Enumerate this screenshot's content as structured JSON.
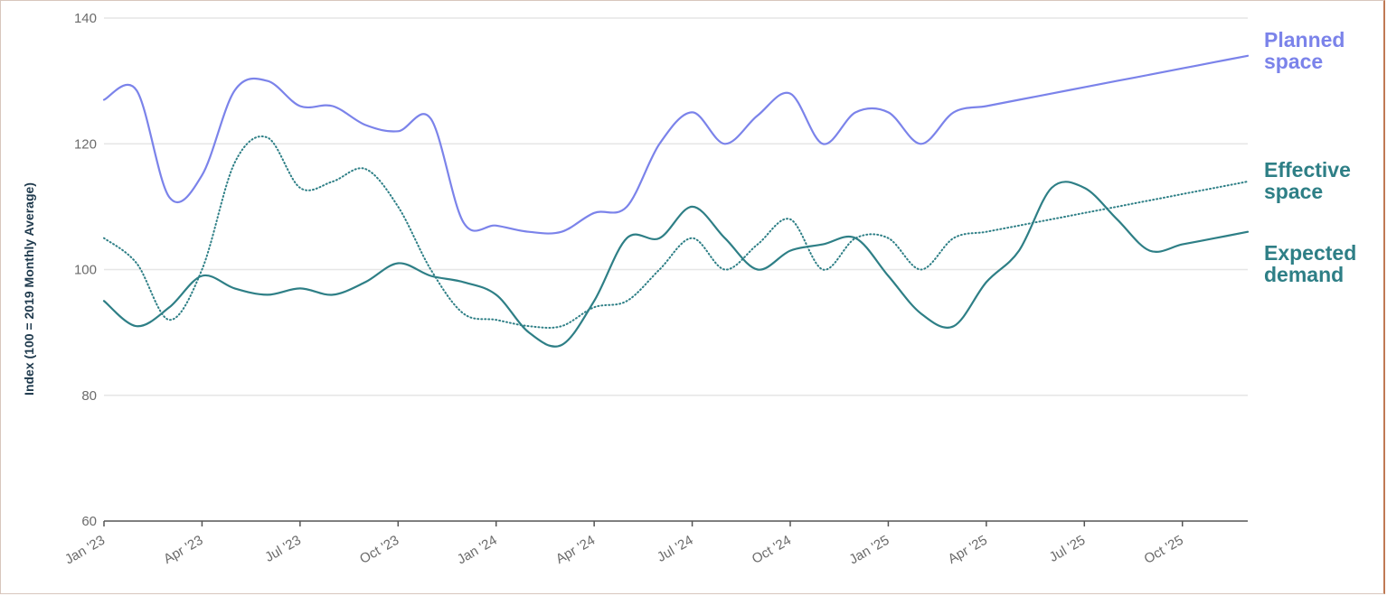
{
  "chart_data": {
    "type": "line",
    "ylabel": "Index (100 = 2019 Monthly Average)",
    "xlabel": "",
    "ylim": [
      60,
      140
    ],
    "yticks": [
      60,
      80,
      100,
      120,
      140
    ],
    "grid": true,
    "x_tick_labels": [
      "Jan '23",
      "Apr '23",
      "Jul '23",
      "Oct '23",
      "Jan '24",
      "Apr '24",
      "Jul '24",
      "Oct '24",
      "Jan '25",
      "Apr '25",
      "Jul '25",
      "Oct '25"
    ],
    "x": [
      "2023-01",
      "2023-02",
      "2023-03",
      "2023-04",
      "2023-05",
      "2023-06",
      "2023-07",
      "2023-08",
      "2023-09",
      "2023-10",
      "2023-11",
      "2023-12",
      "2024-01",
      "2024-02",
      "2024-03",
      "2024-04",
      "2024-05",
      "2024-06",
      "2024-07",
      "2024-08",
      "2024-09",
      "2024-10",
      "2024-11",
      "2024-12",
      "2025-01",
      "2025-02",
      "2025-03",
      "2025-04",
      "2025-05",
      "2025-06",
      "2025-07",
      "2025-08",
      "2025-09",
      "2025-10",
      "2025-11",
      "2025-12"
    ],
    "series": [
      {
        "name": "Planned space",
        "color": "#7b83ea",
        "style": "solid",
        "values": [
          127,
          128.5,
          111.5,
          115,
          128.5,
          130,
          126,
          126,
          123,
          122,
          124,
          107.5,
          107,
          106,
          106,
          109,
          110,
          120,
          125,
          120,
          124.5,
          128,
          120,
          125,
          125,
          120,
          125,
          126,
          127,
          128,
          129,
          130,
          131,
          132,
          133,
          134
        ]
      },
      {
        "name": "Effective space",
        "color": "#2e7f86",
        "style": "dotted",
        "values": [
          105,
          101,
          92,
          100,
          117,
          121,
          113,
          114,
          116,
          110,
          100,
          93,
          92,
          91,
          91,
          94,
          95,
          100,
          105,
          100,
          104,
          108,
          100,
          105,
          105,
          100,
          105,
          106,
          107,
          108,
          109,
          110,
          111,
          112,
          113,
          114
        ]
      },
      {
        "name": "Expected demand",
        "color": "#2e7f86",
        "style": "solid",
        "values": [
          95,
          91,
          94,
          99,
          97,
          96,
          97,
          96,
          98,
          101,
          99,
          98,
          96,
          90,
          88,
          95,
          105,
          105,
          110,
          105,
          100,
          103,
          104,
          105,
          99,
          93,
          91,
          98,
          103,
          113,
          113,
          108,
          103,
          104,
          105,
          106
        ]
      }
    ]
  }
}
